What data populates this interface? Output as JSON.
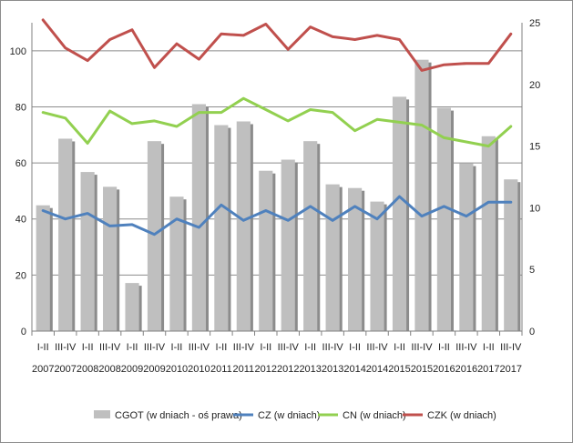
{
  "chart_data": {
    "type": "bar+line",
    "title": "",
    "categories": [
      [
        "I-II",
        "2007"
      ],
      [
        "III-IV",
        "2007"
      ],
      [
        "I-II",
        "2008"
      ],
      [
        "III-IV",
        "2008"
      ],
      [
        "I-II",
        "2009"
      ],
      [
        "III-IV",
        "2009"
      ],
      [
        "I-II",
        "2010"
      ],
      [
        "III-IV",
        "2010"
      ],
      [
        "I-II",
        "2011"
      ],
      [
        "III-IV",
        "2011"
      ],
      [
        "I-II",
        "2012"
      ],
      [
        "III-IV",
        "2012"
      ],
      [
        "I-II",
        "2013"
      ],
      [
        "III-IV",
        "2013"
      ],
      [
        "I-II",
        "2014"
      ],
      [
        "III-IV",
        "2014"
      ],
      [
        "I-II",
        "2015"
      ],
      [
        "III-IV",
        "2015"
      ],
      [
        "I-II",
        "2016"
      ],
      [
        "III-IV",
        "2016"
      ],
      [
        "I-II",
        "2017"
      ],
      [
        "III-IV",
        "2017"
      ]
    ],
    "y_left": {
      "min": 0,
      "max": 110,
      "ticks": [
        0,
        20,
        40,
        60,
        80,
        100
      ],
      "grid": true
    },
    "y_right": {
      "min": 0,
      "max": 25,
      "ticks": [
        0,
        5,
        10,
        15,
        20,
        25
      ]
    },
    "bars": {
      "name": "CGOT (w dniach - oś prawa)",
      "axis": "right",
      "color": "#bfbfbf",
      "shadow": "#8c8c8c",
      "values": [
        10.2,
        15.6,
        12.9,
        11.7,
        3.9,
        15.4,
        10.9,
        18.4,
        16.7,
        17.0,
        13.0,
        13.9,
        15.4,
        11.9,
        11.6,
        10.5,
        19.0,
        22.0,
        18.1,
        13.6,
        15.8,
        12.3
      ]
    },
    "series": [
      {
        "name": "CZ (w dniach)",
        "axis": "left",
        "color": "#4f81bd",
        "values": [
          43,
          40,
          42,
          37.5,
          38,
          34.5,
          40,
          37,
          45,
          39.5,
          43,
          39.5,
          44.5,
          39.5,
          44.5,
          40,
          48,
          41,
          44.5,
          41,
          46,
          46
        ]
      },
      {
        "name": "CN (w dniach)",
        "axis": "left",
        "color": "#92d050",
        "values": [
          78,
          76,
          67,
          78.5,
          74,
          75,
          73,
          78,
          78,
          83,
          79,
          75,
          79,
          78,
          71.5,
          75.5,
          74.5,
          73.5,
          69,
          67.5,
          66,
          73
        ]
      },
      {
        "name": "CZK (w dniach)",
        "axis": "left",
        "color": "#c0504d",
        "values": [
          111,
          101,
          96.5,
          104,
          107.5,
          94,
          102.5,
          97,
          106,
          105.5,
          109.5,
          100.5,
          108.5,
          105,
          104,
          105.5,
          104,
          93,
          95,
          95.5,
          95.5,
          106
        ]
      }
    ],
    "legend": {
      "position": "bottom",
      "entries": [
        "CGOT (w dniach - oś prawa)",
        "CZ (w dniach)",
        "CN (w dniach)",
        "CZK (w dniach)"
      ]
    }
  }
}
